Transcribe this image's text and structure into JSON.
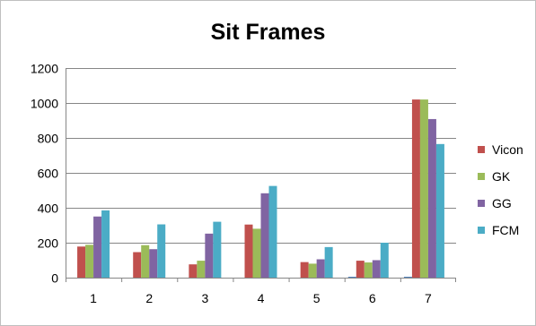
{
  "chart_data": {
    "type": "bar",
    "title": "Sit Frames",
    "xlabel": "",
    "ylabel": "",
    "categories": [
      "1",
      "2",
      "3",
      "4",
      "5",
      "6",
      "7"
    ],
    "ylim": [
      0,
      1200
    ],
    "yticks": [
      0,
      200,
      400,
      600,
      800,
      1000,
      1200
    ],
    "grid": true,
    "legend_position": "right",
    "series": [
      {
        "name": "Vicon",
        "color": "#c0504d",
        "values": [
          178,
          146,
          76,
          304,
          89,
          97,
          1020
        ]
      },
      {
        "name": "GK",
        "color": "#9bbb59",
        "values": [
          188,
          186,
          97,
          280,
          80,
          87,
          1020
        ]
      },
      {
        "name": "GG",
        "color": "#8064a2",
        "values": [
          350,
          163,
          252,
          483,
          105,
          100,
          908
        ]
      },
      {
        "name": "FCM",
        "color": "#4bacc6",
        "values": [
          385,
          305,
          320,
          525,
          175,
          200,
          765
        ]
      }
    ],
    "extra_small_bars": [
      {
        "category": "6",
        "value": 5,
        "color": "#4f81bd"
      },
      {
        "category": "7",
        "value": 5,
        "color": "#4f81bd"
      }
    ]
  }
}
